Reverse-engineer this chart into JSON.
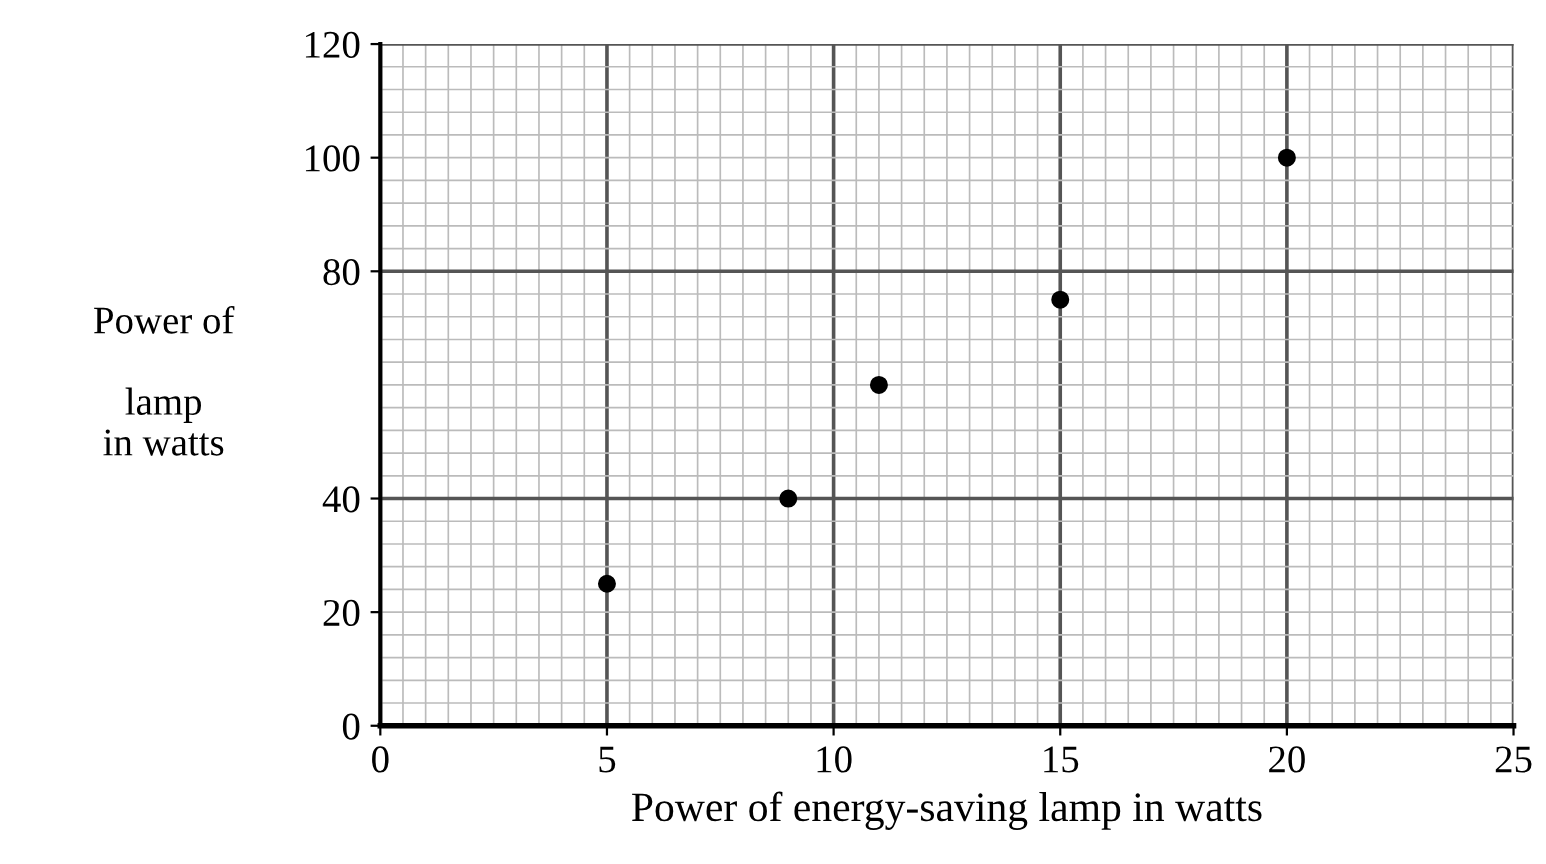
{
  "chart_data": {
    "type": "scatter",
    "xlabel": "Power of energy-saving lamp in watts",
    "ylabel": "Power of\n\nlamp\nin watts",
    "x": [
      5,
      9,
      11,
      15,
      20
    ],
    "values": [
      25,
      40,
      60,
      75,
      100
    ],
    "color": "#000000",
    "marker": "circle",
    "xlim": [
      0,
      25
    ],
    "ylim": [
      0,
      120
    ],
    "xticks": [
      0,
      5,
      10,
      15,
      20,
      25
    ],
    "yticks": [
      0,
      20,
      40,
      80,
      100,
      120
    ],
    "grid": true
  }
}
